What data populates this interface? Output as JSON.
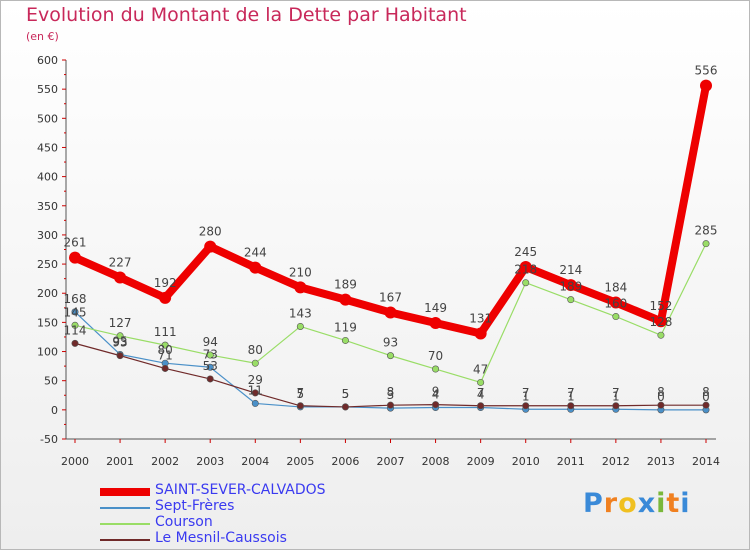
{
  "chart_data": {
    "type": "line",
    "title": "Evolution du Montant de la Dette par Habitant",
    "subtitle": "(en €)",
    "xlabel": "",
    "ylabel": "",
    "ylim": [
      -50,
      600
    ],
    "y_ticks": [
      -50,
      0,
      50,
      100,
      150,
      200,
      250,
      300,
      350,
      400,
      450,
      500,
      550,
      600
    ],
    "categories": [
      "2000",
      "2001",
      "2002",
      "2003",
      "2004",
      "2005",
      "2006",
      "2007",
      "2008",
      "2009",
      "2010",
      "2011",
      "2012",
      "2013",
      "2014"
    ],
    "grid": false,
    "legend_position": "bottom-left",
    "series": [
      {
        "name": "SAINT-SEVER-CALVADOS",
        "color": "#ee0000",
        "emphasis": true,
        "values": [
          261,
          227,
          192,
          280,
          244,
          210,
          189,
          167,
          149,
          131,
          245,
          214,
          184,
          152,
          556
        ]
      },
      {
        "name": "Sept-Frères",
        "color": "#4a90c8",
        "emphasis": false,
        "values": [
          168,
          95,
          80,
          73,
          11,
          5,
          5,
          3,
          4,
          4,
          1,
          1,
          1,
          0,
          0
        ]
      },
      {
        "name": "Courson",
        "color": "#99dd66",
        "emphasis": false,
        "values": [
          145,
          127,
          111,
          94,
          80,
          143,
          119,
          93,
          70,
          47,
          218,
          189,
          160,
          128,
          285
        ]
      },
      {
        "name": "Le Mesnil-Caussois",
        "color": "#702a2a",
        "emphasis": false,
        "values": [
          114,
          93,
          71,
          53,
          29,
          7,
          5,
          8,
          9,
          7,
          7,
          7,
          7,
          8,
          8
        ]
      }
    ]
  },
  "logo": {
    "letters": [
      "P",
      "r",
      "o",
      "x",
      "i",
      "t",
      "i"
    ],
    "colors": [
      "#3a8ad8",
      "#f08020",
      "#f0c020",
      "#3a8ad8",
      "#7ab83a",
      "#f08020",
      "#3a8ad8"
    ]
  }
}
